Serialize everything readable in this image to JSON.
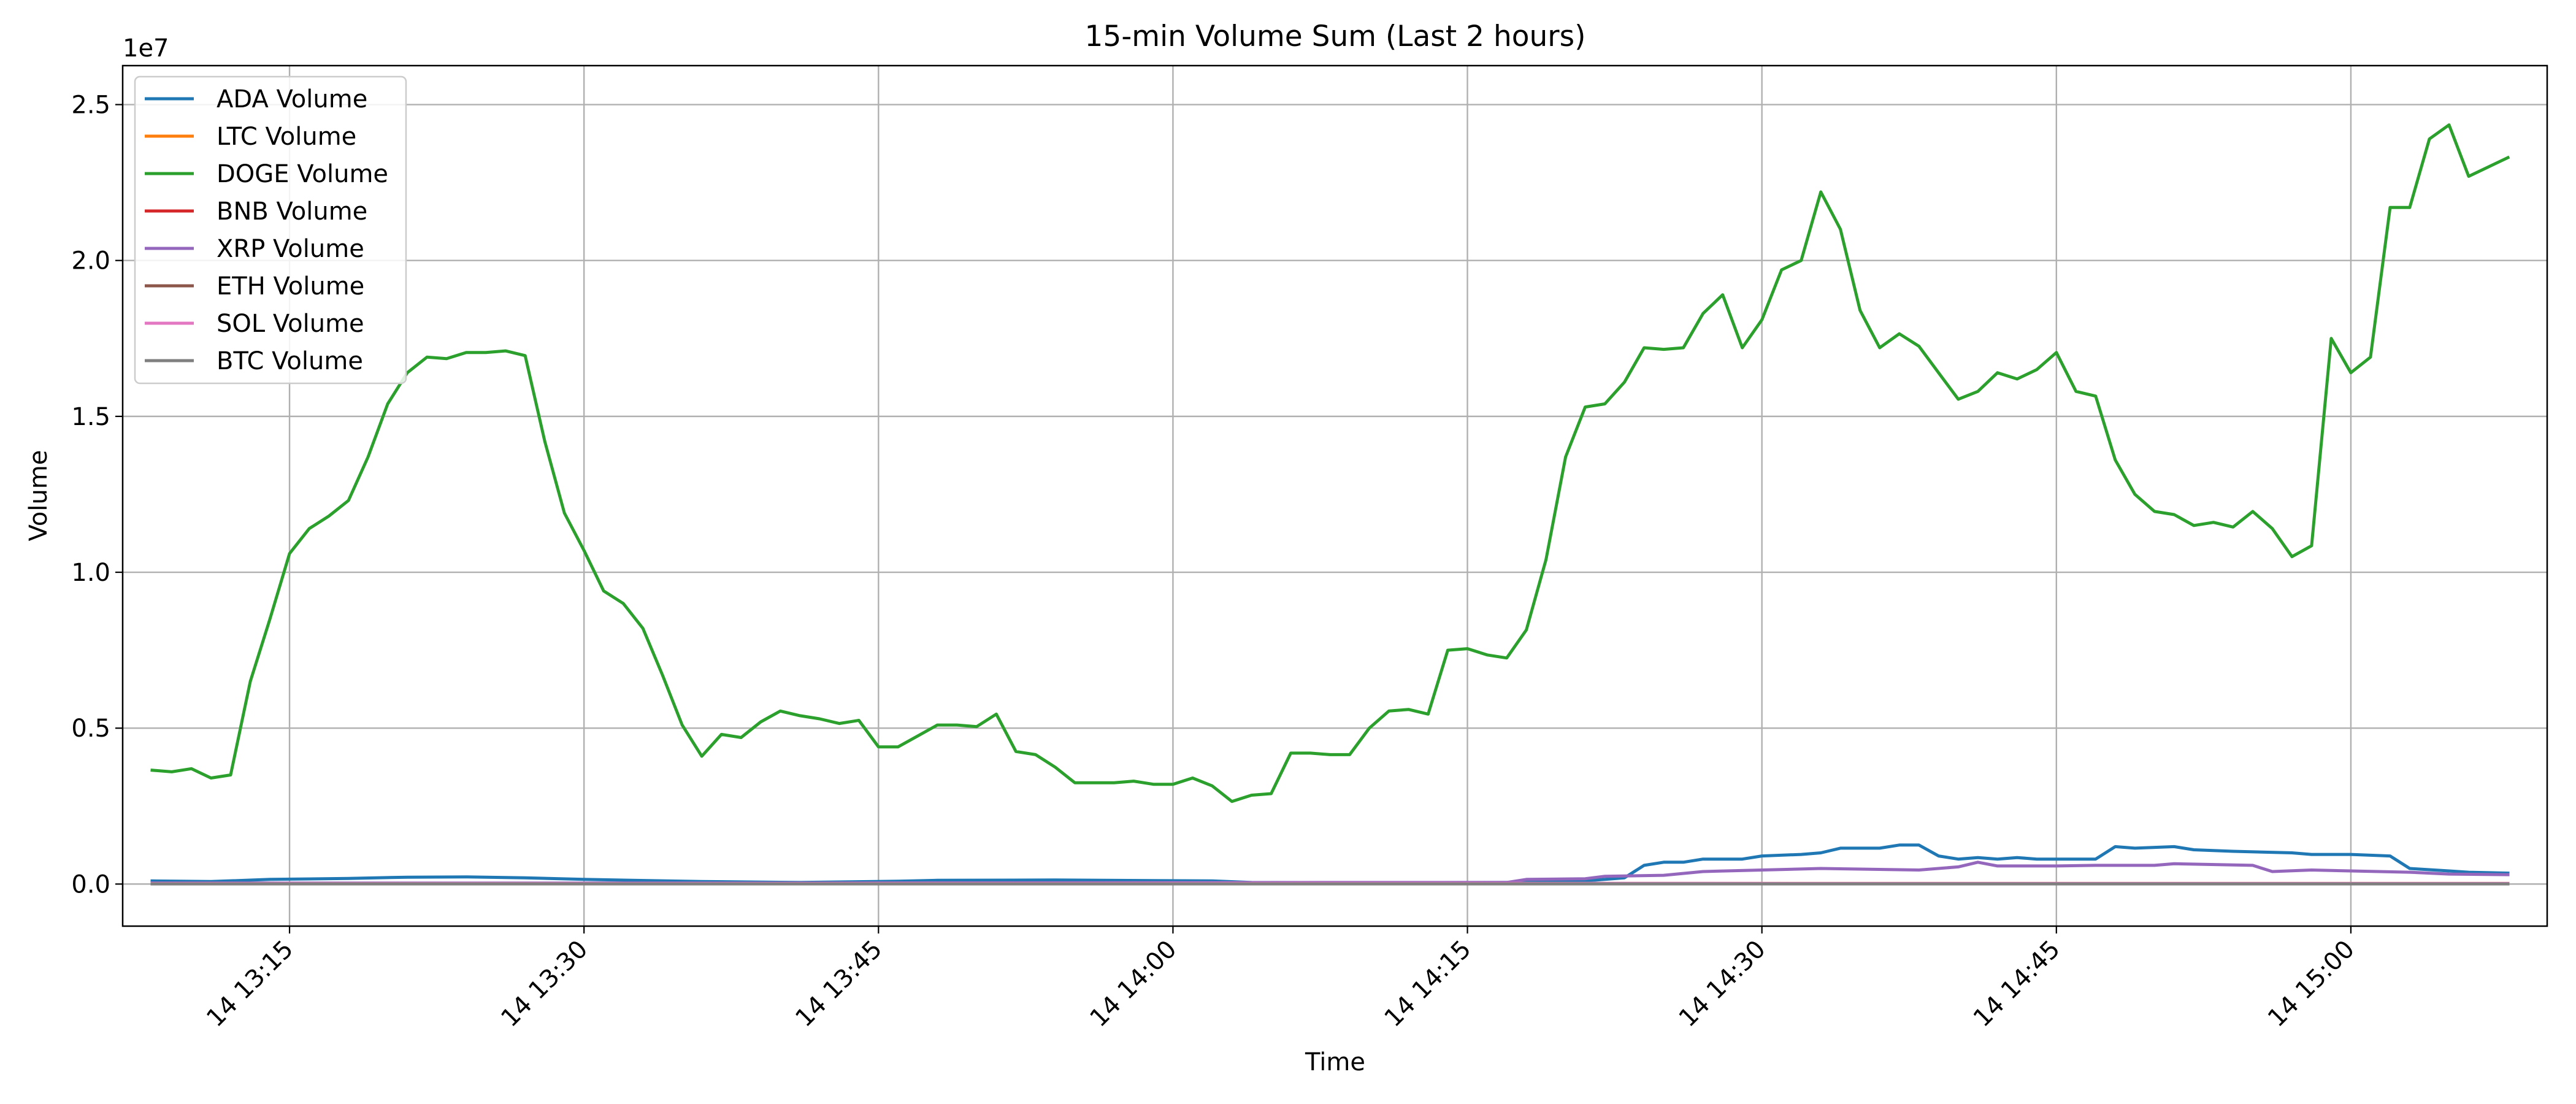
{
  "chart_data": {
    "type": "line",
    "title": "15-min Volume Sum (Last 2 hours)",
    "xlabel": "Time",
    "ylabel": "Volume",
    "y_offset_text": "1e7",
    "ylim": [
      -1350000,
      26250000
    ],
    "xlim": [
      "13:06:30",
      "15:10:00"
    ],
    "y_ticks": [
      {
        "value": 0,
        "label": "0.0"
      },
      {
        "value": 5000000,
        "label": "0.5"
      },
      {
        "value": 10000000,
        "label": "1.0"
      },
      {
        "value": 15000000,
        "label": "1.5"
      },
      {
        "value": 20000000,
        "label": "2.0"
      },
      {
        "value": 25000000,
        "label": "2.5"
      }
    ],
    "x_ticks": [
      {
        "value": "13:15",
        "label": "14 13:15"
      },
      {
        "value": "13:30",
        "label": "14 13:30"
      },
      {
        "value": "13:45",
        "label": "14 13:45"
      },
      {
        "value": "14:00",
        "label": "14 14:00"
      },
      {
        "value": "14:15",
        "label": "14 14:15"
      },
      {
        "value": "14:30",
        "label": "14 14:30"
      },
      {
        "value": "14:45",
        "label": "14 14:45"
      },
      {
        "value": "15:00",
        "label": "14 15:00"
      }
    ],
    "grid": true,
    "legend_position": "upper-left",
    "series": [
      {
        "name": "ADA Volume",
        "color": "#1f77b4",
        "points": [
          [
            "13:08",
            100000
          ],
          [
            "13:11",
            80000
          ],
          [
            "13:14",
            150000
          ],
          [
            "13:18",
            180000
          ],
          [
            "13:21",
            220000
          ],
          [
            "13:24",
            230000
          ],
          [
            "13:27",
            200000
          ],
          [
            "13:30",
            150000
          ],
          [
            "13:36",
            80000
          ],
          [
            "13:41",
            50000
          ],
          [
            "13:46",
            90000
          ],
          [
            "13:48",
            120000
          ],
          [
            "13:54",
            130000
          ],
          [
            "13:59",
            110000
          ],
          [
            "14:02",
            100000
          ],
          [
            "14:04",
            50000
          ],
          [
            "14:10",
            40000
          ],
          [
            "14:17",
            50000
          ],
          [
            "14:21",
            100000
          ],
          [
            "14:23",
            200000
          ],
          [
            "14:24",
            600000
          ],
          [
            "14:25",
            700000
          ],
          [
            "14:26",
            700000
          ],
          [
            "14:27",
            800000
          ],
          [
            "14:29",
            800000
          ],
          [
            "14:30",
            900000
          ],
          [
            "14:32",
            950000
          ],
          [
            "14:33",
            1000000
          ],
          [
            "14:34",
            1150000
          ],
          [
            "14:35",
            1150000
          ],
          [
            "14:36",
            1150000
          ],
          [
            "14:37",
            1250000
          ],
          [
            "14:38",
            1250000
          ],
          [
            "14:39",
            900000
          ],
          [
            "14:40",
            800000
          ],
          [
            "14:41",
            850000
          ],
          [
            "14:42",
            800000
          ],
          [
            "14:43",
            850000
          ],
          [
            "14:44",
            800000
          ],
          [
            "14:45",
            800000
          ],
          [
            "14:47",
            800000
          ],
          [
            "14:48",
            1200000
          ],
          [
            "14:49",
            1150000
          ],
          [
            "14:51",
            1200000
          ],
          [
            "14:52",
            1100000
          ],
          [
            "14:54",
            1050000
          ],
          [
            "14:57",
            1000000
          ],
          [
            "14:58",
            950000
          ],
          [
            "15:00",
            950000
          ],
          [
            "15:02",
            900000
          ],
          [
            "15:03",
            500000
          ],
          [
            "15:05",
            420000
          ],
          [
            "15:06",
            380000
          ],
          [
            "15:08",
            350000
          ]
        ]
      },
      {
        "name": "LTC Volume",
        "color": "#ff7f0e",
        "points": [
          [
            "13:08",
            20000
          ],
          [
            "13:38",
            15000
          ],
          [
            "14:08",
            20000
          ],
          [
            "14:38",
            20000
          ],
          [
            "15:08",
            20000
          ]
        ]
      },
      {
        "name": "DOGE Volume",
        "color": "#2ca02c",
        "points": [
          [
            "13:08",
            3650000
          ],
          [
            "13:09",
            3600000
          ],
          [
            "13:10",
            3700000
          ],
          [
            "13:11",
            3400000
          ],
          [
            "13:12",
            3500000
          ],
          [
            "13:13",
            6500000
          ],
          [
            "13:14",
            8500000
          ],
          [
            "13:15",
            10600000
          ],
          [
            "13:16",
            11400000
          ],
          [
            "13:17",
            11800000
          ],
          [
            "13:18",
            12300000
          ],
          [
            "13:19",
            13700000
          ],
          [
            "13:20",
            15400000
          ],
          [
            "13:21",
            16400000
          ],
          [
            "13:22",
            16900000
          ],
          [
            "13:23",
            16850000
          ],
          [
            "13:24",
            17050000
          ],
          [
            "13:25",
            17050000
          ],
          [
            "13:26",
            17100000
          ],
          [
            "13:27",
            16950000
          ],
          [
            "13:28",
            14200000
          ],
          [
            "13:29",
            11900000
          ],
          [
            "13:30",
            10700000
          ],
          [
            "13:31",
            9400000
          ],
          [
            "13:32",
            9000000
          ],
          [
            "13:33",
            8200000
          ],
          [
            "13:34",
            6700000
          ],
          [
            "13:35",
            5100000
          ],
          [
            "13:36",
            4100000
          ],
          [
            "13:37",
            4800000
          ],
          [
            "13:38",
            4700000
          ],
          [
            "13:39",
            5200000
          ],
          [
            "13:40",
            5550000
          ],
          [
            "13:41",
            5400000
          ],
          [
            "13:42",
            5300000
          ],
          [
            "13:43",
            5150000
          ],
          [
            "13:44",
            5250000
          ],
          [
            "13:45",
            4400000
          ],
          [
            "13:46",
            4400000
          ],
          [
            "13:47",
            4750000
          ],
          [
            "13:48",
            5100000
          ],
          [
            "13:49",
            5100000
          ],
          [
            "13:50",
            5050000
          ],
          [
            "13:51",
            5450000
          ],
          [
            "13:52",
            4250000
          ],
          [
            "13:53",
            4150000
          ],
          [
            "13:54",
            3750000
          ],
          [
            "13:55",
            3250000
          ],
          [
            "13:56",
            3250000
          ],
          [
            "13:57",
            3250000
          ],
          [
            "13:58",
            3300000
          ],
          [
            "13:59",
            3200000
          ],
          [
            "14:00",
            3200000
          ],
          [
            "14:01",
            3400000
          ],
          [
            "14:02",
            3150000
          ],
          [
            "14:03",
            2650000
          ],
          [
            "14:04",
            2850000
          ],
          [
            "14:05",
            2900000
          ],
          [
            "14:06",
            4200000
          ],
          [
            "14:07",
            4200000
          ],
          [
            "14:08",
            4150000
          ],
          [
            "14:09",
            4150000
          ],
          [
            "14:10",
            5000000
          ],
          [
            "14:11",
            5550000
          ],
          [
            "14:12",
            5600000
          ],
          [
            "14:13",
            5450000
          ],
          [
            "14:14",
            7500000
          ],
          [
            "14:15",
            7550000
          ],
          [
            "14:16",
            7350000
          ],
          [
            "14:17",
            7250000
          ],
          [
            "14:18",
            8150000
          ],
          [
            "14:19",
            10400000
          ],
          [
            "14:20",
            13700000
          ],
          [
            "14:21",
            15300000
          ],
          [
            "14:22",
            15400000
          ],
          [
            "14:23",
            16100000
          ],
          [
            "14:24",
            17200000
          ],
          [
            "14:25",
            17150000
          ],
          [
            "14:26",
            17200000
          ],
          [
            "14:27",
            18300000
          ],
          [
            "14:28",
            18900000
          ],
          [
            "14:29",
            17200000
          ],
          [
            "14:30",
            18100000
          ],
          [
            "14:31",
            19700000
          ],
          [
            "14:32",
            20000000
          ],
          [
            "14:33",
            22200000
          ],
          [
            "14:34",
            21000000
          ],
          [
            "14:35",
            18400000
          ],
          [
            "14:36",
            17200000
          ],
          [
            "14:37",
            17650000
          ],
          [
            "14:38",
            17250000
          ],
          [
            "14:39",
            16400000
          ],
          [
            "14:40",
            15550000
          ],
          [
            "14:41",
            15800000
          ],
          [
            "14:42",
            16400000
          ],
          [
            "14:43",
            16200000
          ],
          [
            "14:44",
            16500000
          ],
          [
            "14:45",
            17050000
          ],
          [
            "14:46",
            15800000
          ],
          [
            "14:47",
            15650000
          ],
          [
            "14:48",
            13600000
          ],
          [
            "14:49",
            12500000
          ],
          [
            "14:50",
            11950000
          ],
          [
            "14:51",
            11850000
          ],
          [
            "14:52",
            11500000
          ],
          [
            "14:53",
            11600000
          ],
          [
            "14:54",
            11450000
          ],
          [
            "14:55",
            11950000
          ],
          [
            "14:56",
            11400000
          ],
          [
            "14:57",
            10500000
          ],
          [
            "14:58",
            10850000
          ],
          [
            "14:59",
            17500000
          ],
          [
            "15:00",
            16400000
          ],
          [
            "15:01",
            16900000
          ],
          [
            "15:02",
            21700000
          ],
          [
            "15:03",
            21700000
          ],
          [
            "15:04",
            23900000
          ],
          [
            "15:05",
            24350000
          ],
          [
            "15:06",
            22700000
          ],
          [
            "15:07",
            23000000
          ],
          [
            "15:08",
            23300000
          ]
        ]
      },
      {
        "name": "BNB Volume",
        "color": "#d62728",
        "points": [
          [
            "13:08",
            10000
          ],
          [
            "13:38",
            10000
          ],
          [
            "14:08",
            12000
          ],
          [
            "14:38",
            10000
          ],
          [
            "15:08",
            10000
          ]
        ]
      },
      {
        "name": "XRP Volume",
        "color": "#9467bd",
        "points": [
          [
            "13:08",
            30000
          ],
          [
            "13:38",
            30000
          ],
          [
            "14:08",
            50000
          ],
          [
            "14:17",
            50000
          ],
          [
            "14:18",
            150000
          ],
          [
            "14:21",
            170000
          ],
          [
            "14:22",
            250000
          ],
          [
            "14:25",
            280000
          ],
          [
            "14:27",
            400000
          ],
          [
            "14:30",
            450000
          ],
          [
            "14:33",
            500000
          ],
          [
            "14:35",
            480000
          ],
          [
            "14:38",
            450000
          ],
          [
            "14:40",
            550000
          ],
          [
            "14:41",
            700000
          ],
          [
            "14:42",
            580000
          ],
          [
            "14:45",
            580000
          ],
          [
            "14:47",
            600000
          ],
          [
            "14:50",
            600000
          ],
          [
            "14:51",
            650000
          ],
          [
            "14:55",
            600000
          ],
          [
            "14:56",
            400000
          ],
          [
            "14:58",
            450000
          ],
          [
            "15:00",
            420000
          ],
          [
            "15:03",
            380000
          ],
          [
            "15:05",
            320000
          ],
          [
            "15:08",
            300000
          ]
        ]
      },
      {
        "name": "ETH Volume",
        "color": "#8c564b",
        "points": [
          [
            "13:08",
            15000
          ],
          [
            "13:38",
            15000
          ],
          [
            "14:08",
            15000
          ],
          [
            "14:38",
            15000
          ],
          [
            "15:08",
            15000
          ]
        ]
      },
      {
        "name": "SOL Volume",
        "color": "#e377c2",
        "points": [
          [
            "13:08",
            20000
          ],
          [
            "13:38",
            20000
          ],
          [
            "14:08",
            25000
          ],
          [
            "14:38",
            20000
          ],
          [
            "15:08",
            20000
          ]
        ]
      },
      {
        "name": "BTC Volume",
        "color": "#7f7f7f",
        "points": [
          [
            "13:08",
            5000
          ],
          [
            "13:38",
            5000
          ],
          [
            "14:08",
            5000
          ],
          [
            "14:38",
            5000
          ],
          [
            "15:08",
            5000
          ]
        ]
      }
    ]
  }
}
